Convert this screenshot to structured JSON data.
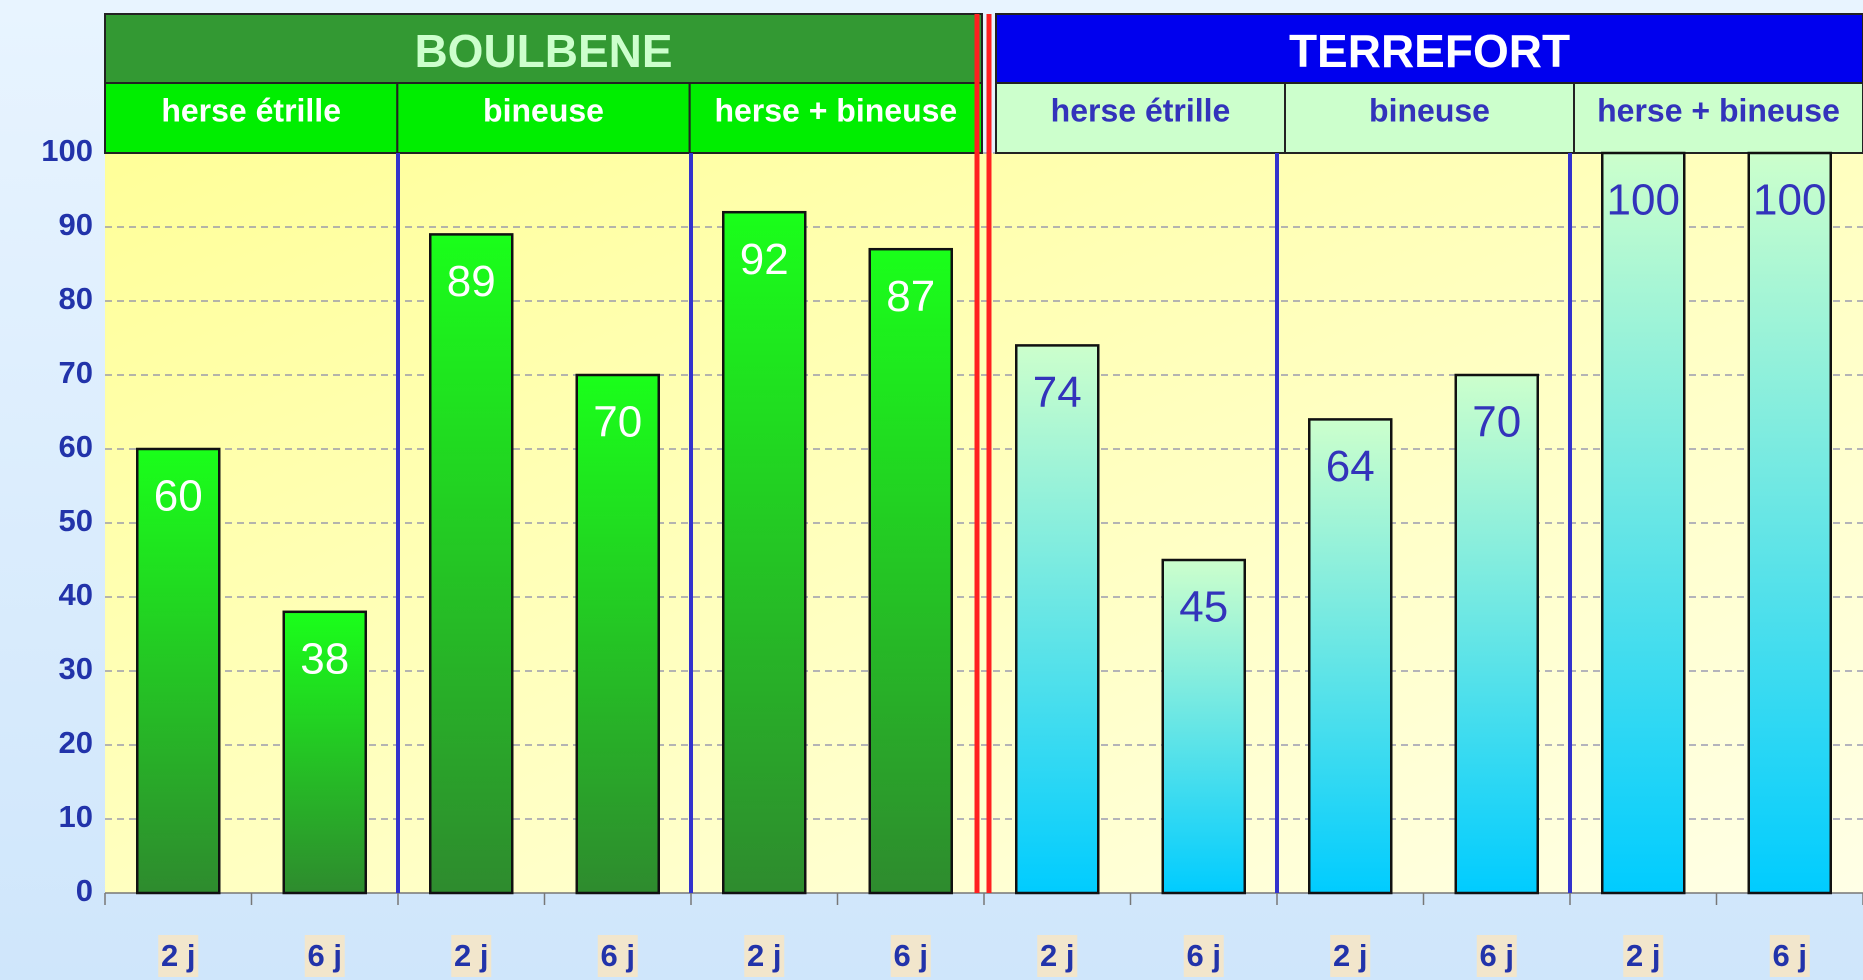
{
  "chart_data": {
    "type": "bar",
    "categories": [
      "2 j",
      "6 j",
      "2 j",
      "6 j",
      "2 j",
      "6 j",
      "2 j",
      "6 j",
      "2 j",
      "6 j",
      "2 j",
      "6 j"
    ],
    "values": [
      60,
      38,
      89,
      70,
      92,
      87,
      74,
      45,
      64,
      70,
      100,
      100
    ],
    "ylim": [
      0,
      100
    ],
    "yticks": [
      0,
      10,
      20,
      30,
      40,
      50,
      60,
      70,
      80,
      90,
      100
    ],
    "grid": true,
    "groups": [
      {
        "name": "BOULBENE",
        "subgroups": [
          "herse étrille",
          "bineuse",
          "herse + bineuse"
        ],
        "header_color": "#339933",
        "header_text_color": "#ccffcc",
        "sub_color": "#00ee00",
        "sub_text_color": "#ffffff",
        "bar_colors": [
          "#1aff1a",
          "#2e8b2e"
        ],
        "label_color": "#ffffff"
      },
      {
        "name": "TERREFORT",
        "subgroups": [
          "herse étrille",
          "bineuse",
          "herse + bineuse"
        ],
        "header_color": "#0000ee",
        "header_text_color": "#ffffff",
        "sub_color": "#ccffcc",
        "sub_text_color": "#3333bb",
        "bar_colors": [
          "#ccffcc",
          "#00ccff"
        ],
        "label_color": "#3333bb"
      }
    ]
  }
}
